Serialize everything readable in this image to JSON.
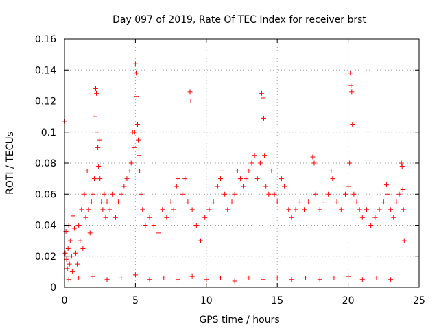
{
  "chart_data": {
    "type": "scatter",
    "title": "Day 097 of 2019, Rate Of TEC Index for receiver brst",
    "xlabel": "GPS time / hours",
    "ylabel": "ROTI / TECUs",
    "xlim": [
      0,
      25
    ],
    "ylim": [
      0,
      0.16
    ],
    "x_ticks": [
      0,
      5,
      10,
      15,
      20,
      25
    ],
    "x_tick_labels": [
      "0",
      "5",
      "10",
      "15",
      "20",
      "25"
    ],
    "y_ticks": [
      0,
      0.02,
      0.04,
      0.06,
      0.08,
      0.1,
      0.12,
      0.14,
      0.16
    ],
    "y_tick_labels": [
      "0",
      "0.02",
      "0.04",
      "0.06",
      "0.08",
      "0.1",
      "0.12",
      "0.14",
      "0.16"
    ],
    "grid": true,
    "marker": "plus",
    "color": "#ff0000",
    "series": [
      {
        "points": [
          [
            0.02,
            0.107
          ],
          [
            0.05,
            0.022
          ],
          [
            0.1,
            0.036
          ],
          [
            0.15,
            0.018
          ],
          [
            0.2,
            0.012
          ],
          [
            0.25,
            0.025
          ],
          [
            0.3,
            0.04
          ],
          [
            0.35,
            0.015
          ],
          [
            0.4,
            0.03
          ],
          [
            0.5,
            0.02
          ],
          [
            0.55,
            0.01
          ],
          [
            0.6,
            0.046
          ],
          [
            0.7,
            0.038
          ],
          [
            0.8,
            0.022
          ],
          [
            0.9,
            0.015
          ],
          [
            1.0,
            0.04
          ],
          [
            1.1,
            0.03
          ],
          [
            1.2,
            0.05
          ],
          [
            1.3,
            0.025
          ],
          [
            1.4,
            0.06
          ],
          [
            1.5,
            0.045
          ],
          [
            1.6,
            0.075
          ],
          [
            1.7,
            0.05
          ],
          [
            1.8,
            0.035
          ],
          [
            1.9,
            0.055
          ],
          [
            2.0,
            0.06
          ],
          [
            2.1,
            0.07
          ],
          [
            2.15,
            0.11
          ],
          [
            2.2,
            0.128
          ],
          [
            2.25,
            0.125
          ],
          [
            2.3,
            0.1
          ],
          [
            2.35,
            0.09
          ],
          [
            2.4,
            0.078
          ],
          [
            2.45,
            0.095
          ],
          [
            2.5,
            0.07
          ],
          [
            2.6,
            0.055
          ],
          [
            2.7,
            0.05
          ],
          [
            2.8,
            0.06
          ],
          [
            2.9,
            0.045
          ],
          [
            3.0,
            0.055
          ],
          [
            3.2,
            0.05
          ],
          [
            3.4,
            0.06
          ],
          [
            3.6,
            0.045
          ],
          [
            3.8,
            0.055
          ],
          [
            4.0,
            0.06
          ],
          [
            4.2,
            0.065
          ],
          [
            4.4,
            0.07
          ],
          [
            4.6,
            0.075
          ],
          [
            4.7,
            0.08
          ],
          [
            4.8,
            0.1
          ],
          [
            4.9,
            0.09
          ],
          [
            4.95,
            0.1
          ],
          [
            5.0,
            0.144
          ],
          [
            5.05,
            0.138
          ],
          [
            5.1,
            0.123
          ],
          [
            5.15,
            0.105
          ],
          [
            5.2,
            0.095
          ],
          [
            5.25,
            0.085
          ],
          [
            5.3,
            0.075
          ],
          [
            5.4,
            0.06
          ],
          [
            5.5,
            0.05
          ],
          [
            5.7,
            0.04
          ],
          [
            6.0,
            0.045
          ],
          [
            6.3,
            0.04
          ],
          [
            6.6,
            0.035
          ],
          [
            6.9,
            0.05
          ],
          [
            7.2,
            0.045
          ],
          [
            7.5,
            0.055
          ],
          [
            7.7,
            0.05
          ],
          [
            7.9,
            0.065
          ],
          [
            8.0,
            0.07
          ],
          [
            8.3,
            0.06
          ],
          [
            8.5,
            0.07
          ],
          [
            8.7,
            0.055
          ],
          [
            8.85,
            0.126
          ],
          [
            8.9,
            0.12
          ],
          [
            9.0,
            0.05
          ],
          [
            9.3,
            0.04
          ],
          [
            9.6,
            0.03
          ],
          [
            9.9,
            0.045
          ],
          [
            10.2,
            0.05
          ],
          [
            10.5,
            0.055
          ],
          [
            10.8,
            0.065
          ],
          [
            11.0,
            0.07
          ],
          [
            11.1,
            0.075
          ],
          [
            11.3,
            0.06
          ],
          [
            11.5,
            0.05
          ],
          [
            11.8,
            0.055
          ],
          [
            12.0,
            0.06
          ],
          [
            12.2,
            0.075
          ],
          [
            12.4,
            0.07
          ],
          [
            12.6,
            0.065
          ],
          [
            12.8,
            0.07
          ],
          [
            13.0,
            0.075
          ],
          [
            13.2,
            0.08
          ],
          [
            13.4,
            0.085
          ],
          [
            13.6,
            0.07
          ],
          [
            13.8,
            0.08
          ],
          [
            13.9,
            0.125
          ],
          [
            14.0,
            0.122
          ],
          [
            14.05,
            0.109
          ],
          [
            14.1,
            0.085
          ],
          [
            14.2,
            0.065
          ],
          [
            14.4,
            0.06
          ],
          [
            14.6,
            0.075
          ],
          [
            14.8,
            0.06
          ],
          [
            15.0,
            0.055
          ],
          [
            15.3,
            0.07
          ],
          [
            15.5,
            0.065
          ],
          [
            15.8,
            0.05
          ],
          [
            16.0,
            0.045
          ],
          [
            16.3,
            0.05
          ],
          [
            16.6,
            0.055
          ],
          [
            16.9,
            0.05
          ],
          [
            17.2,
            0.055
          ],
          [
            17.5,
            0.084
          ],
          [
            17.6,
            0.08
          ],
          [
            17.7,
            0.06
          ],
          [
            18.0,
            0.05
          ],
          [
            18.3,
            0.055
          ],
          [
            18.6,
            0.06
          ],
          [
            18.8,
            0.075
          ],
          [
            18.9,
            0.07
          ],
          [
            19.2,
            0.055
          ],
          [
            19.5,
            0.05
          ],
          [
            19.8,
            0.06
          ],
          [
            20.0,
            0.065
          ],
          [
            20.1,
            0.08
          ],
          [
            20.15,
            0.138
          ],
          [
            20.2,
            0.13
          ],
          [
            20.25,
            0.126
          ],
          [
            20.3,
            0.105
          ],
          [
            20.4,
            0.06
          ],
          [
            20.6,
            0.055
          ],
          [
            20.8,
            0.05
          ],
          [
            21.0,
            0.045
          ],
          [
            21.3,
            0.05
          ],
          [
            21.6,
            0.04
          ],
          [
            21.9,
            0.045
          ],
          [
            22.2,
            0.05
          ],
          [
            22.5,
            0.055
          ],
          [
            22.7,
            0.066
          ],
          [
            22.8,
            0.06
          ],
          [
            23.0,
            0.05
          ],
          [
            23.2,
            0.045
          ],
          [
            23.4,
            0.055
          ],
          [
            23.6,
            0.06
          ],
          [
            23.75,
            0.08
          ],
          [
            23.8,
            0.078
          ],
          [
            23.85,
            0.063
          ],
          [
            23.9,
            0.05
          ],
          [
            23.95,
            0.03
          ],
          [
            0.3,
            0.005
          ],
          [
            1.0,
            0.006
          ],
          [
            2.0,
            0.007
          ],
          [
            3.0,
            0.005
          ],
          [
            4.0,
            0.006
          ],
          [
            5.0,
            0.008
          ],
          [
            6.0,
            0.005
          ],
          [
            7.0,
            0.006
          ],
          [
            8.0,
            0.005
          ],
          [
            9.0,
            0.007
          ],
          [
            10.0,
            0.005
          ],
          [
            11.0,
            0.006
          ],
          [
            12.0,
            0.004
          ],
          [
            13.0,
            0.006
          ],
          [
            14.0,
            0.005
          ],
          [
            15.0,
            0.006
          ],
          [
            16.0,
            0.005
          ],
          [
            17.0,
            0.006
          ],
          [
            18.0,
            0.005
          ],
          [
            19.0,
            0.006
          ],
          [
            20.0,
            0.007
          ],
          [
            21.0,
            0.005
          ],
          [
            22.0,
            0.006
          ],
          [
            23.0,
            0.005
          ]
        ]
      }
    ]
  }
}
